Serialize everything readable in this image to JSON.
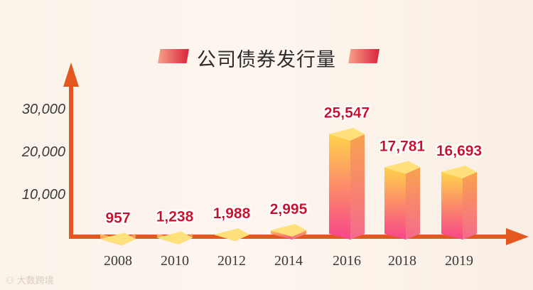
{
  "chart_data": {
    "type": "bar",
    "title": "公司债券发行量",
    "categories": [
      "2008",
      "2010",
      "2012",
      "2014",
      "2016",
      "2018",
      "2019"
    ],
    "values": [
      957,
      1238,
      1988,
      2995,
      25547,
      17781,
      16693
    ],
    "value_labels": [
      "957",
      "1,238",
      "1,988",
      "2,995",
      "25,547",
      "17,781",
      "16,693"
    ],
    "yticks": [
      "10,000",
      "20,000",
      "30,000"
    ],
    "ytick_values": [
      10000,
      20000,
      30000
    ],
    "ylim": [
      0,
      30000
    ],
    "xlabel": "",
    "ylabel": "",
    "grid": false,
    "colors": {
      "axis": "#e4571e",
      "label": "#c8102e",
      "bar_top": "#ffe07a",
      "bar_front_top": "#ffd24a",
      "bar_front_bottom": "#f7458a",
      "bar_side": "#f46a8c"
    }
  },
  "watermark": "大数跨境"
}
